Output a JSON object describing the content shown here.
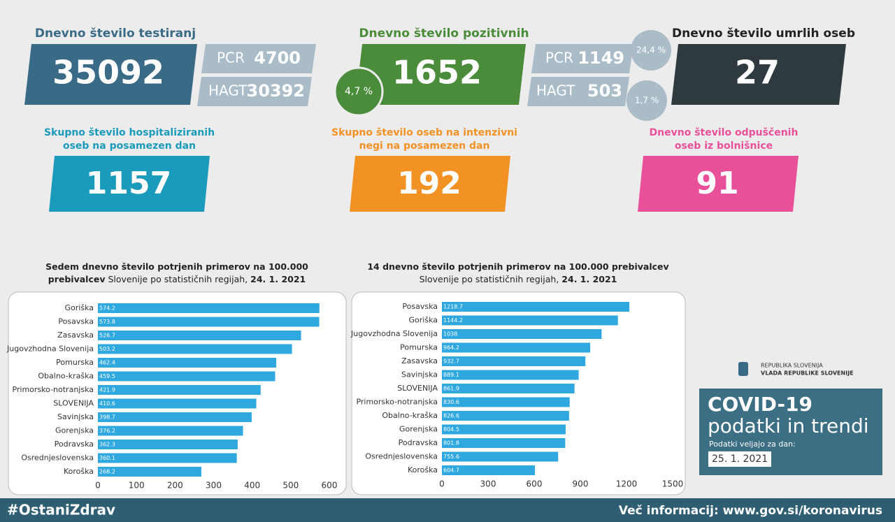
{
  "cards": {
    "tests": {
      "title": "Dnevno število testiranj",
      "value": 35092,
      "pcr_label": "PCR",
      "pcr": 4700,
      "hagt_label": "HAGT",
      "hagt": 30392
    },
    "positive": {
      "title": "Dnevno število pozitivnih",
      "value": 1652,
      "share": "4,7 %",
      "pcr_label": "PCR",
      "pcr": 1149,
      "pcr_share": "24,4 %",
      "hagt_label": "HAGT",
      "hagt": 503,
      "hagt_share": "1,7 %"
    },
    "deaths": {
      "title": "Dnevno število umrlih oseb",
      "value": 27
    },
    "hospital": {
      "title_lines": [
        "Skupno število hospitaliziranih",
        "oseb na posamezen dan"
      ],
      "value": 1157
    },
    "icu": {
      "title_lines": [
        "Skupno število oseb na intenzivni",
        "negi na posamezen dan"
      ],
      "value": 192
    },
    "discharged": {
      "title_lines": [
        "Dnevno število odpuščenih",
        "oseb iz bolnišnice"
      ],
      "value": 91
    }
  },
  "chart_data": [
    {
      "type": "bar",
      "orientation": "horizontal",
      "color": "#2ea8de",
      "grid": false,
      "title_lines": [
        [
          {
            "text": "Sedem dnevno število potrjenih primerov na 100.000",
            "bold": true
          }
        ],
        [
          {
            "text": "prebivalcev",
            "bold": true
          },
          {
            "text": " Slovenije po statističnih regijah, ",
            "bold": false
          },
          {
            "text": "24. 1. 2021",
            "bold": true
          }
        ]
      ],
      "categories": [
        "Goriška",
        "Posavska",
        "Zasavska",
        "Jugovzhodna Slovenija",
        "Pomurska",
        "Obalno-kraška",
        "Primorsko-notranjska",
        "SLOVENIJA",
        "Savinjska",
        "Gorenjska",
        "Podravska",
        "Osrednjeslovenska",
        "Koroška"
      ],
      "values": [
        574.2,
        573.8,
        526.7,
        503.2,
        462.4,
        459.5,
        421.9,
        410.6,
        398.7,
        376.2,
        362.3,
        360.1,
        268.2
      ],
      "xlim": [
        0,
        600
      ],
      "xticks": [
        0,
        100,
        200,
        300,
        400,
        500,
        600
      ]
    },
    {
      "type": "bar",
      "orientation": "horizontal",
      "color": "#2ea8de",
      "grid": false,
      "title_lines": [
        [
          {
            "text": "14 dnevno število potrjenih primerov na 100.000 prebivalcev",
            "bold": true
          }
        ],
        [
          {
            "text": "Slovenije po statističnih regijah, ",
            "bold": false
          },
          {
            "text": "24. 1. 2021",
            "bold": true
          }
        ]
      ],
      "categories": [
        "Posavska",
        "Goriška",
        "Jugovzhodna Slovenija",
        "Pomurska",
        "Zasavska",
        "Savinjska",
        "SLOVENIJA",
        "Primorsko-notranjska",
        "Obalno-kraška",
        "Gorenjska",
        "Podravska",
        "Osrednjeslovenska",
        "Koroška"
      ],
      "values": [
        1218.7,
        1144.2,
        1038,
        964.2,
        932.7,
        889.1,
        861.9,
        830.6,
        826.6,
        804.5,
        801.8,
        755.6,
        604.7
      ],
      "xlim": [
        0,
        1500
      ],
      "xticks": [
        0,
        300,
        600,
        900,
        1200,
        1500
      ]
    }
  ],
  "brand": {
    "line1": "REPUBLIKA SLOVENIJA",
    "line2": "VLADA REPUBLIKE SLOVENIJE"
  },
  "info_box": {
    "title": "COVID-19",
    "subtitle": "podatki in trendi",
    "date_label": "Podatki veljajo za dan:",
    "date": "25. 1. 2021"
  },
  "footer": {
    "hashtag": "#OstaniZdrav",
    "more": "Več informacij: www.gov.si/koronavirus"
  }
}
